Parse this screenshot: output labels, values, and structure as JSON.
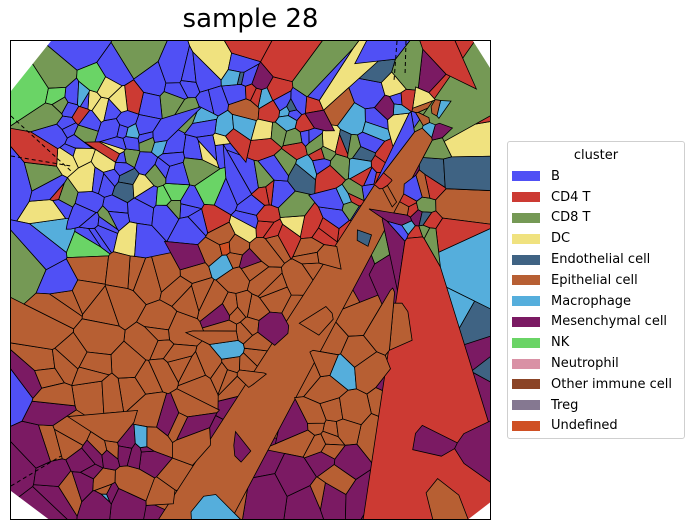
{
  "chart_data": {
    "type": "voronoi",
    "title": "sample 28",
    "xlabel": "",
    "ylabel": "",
    "grid": false,
    "legend": {
      "title": "cluster",
      "placement": "right-outside",
      "entries": [
        {
          "name": "B",
          "color": "#5050f5"
        },
        {
          "name": "CD4 T",
          "color": "#cc3a33"
        },
        {
          "name": "CD8 T",
          "color": "#759955"
        },
        {
          "name": "DC",
          "color": "#f0e27f"
        },
        {
          "name": "Endothelial cell",
          "color": "#3f6383"
        },
        {
          "name": "Epithelial cell",
          "color": "#b75f33"
        },
        {
          "name": "Macrophage",
          "color": "#55aedc"
        },
        {
          "name": "Mesenchymal cell",
          "color": "#7b1a63"
        },
        {
          "name": "NK",
          "color": "#6ad466"
        },
        {
          "name": "Neutrophil",
          "color": "#d991a5"
        },
        {
          "name": "Other immune cell",
          "color": "#8b4426"
        },
        {
          "name": "Treg",
          "color": "#857891"
        },
        {
          "name": "Undefined",
          "color": "#cf5024"
        }
      ]
    },
    "regions": [
      {
        "cluster": "Epithelial cell",
        "area": "lower-center and lower-left"
      },
      {
        "cluster": "B",
        "area": "upper-left and upper-center"
      },
      {
        "cluster": "CD4 T",
        "area": "upper-right"
      },
      {
        "cluster": "Mesenchymal cell",
        "area": "border and bottom"
      },
      {
        "cluster": "Macrophage",
        "area": "scattered"
      }
    ]
  }
}
